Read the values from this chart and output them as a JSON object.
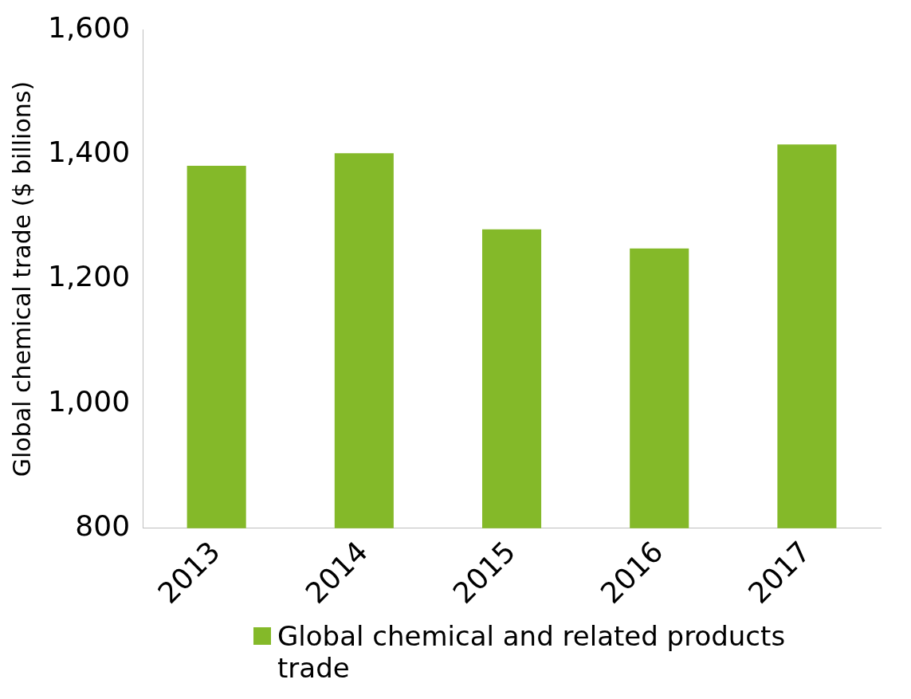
{
  "chart_data": {
    "type": "bar",
    "ylabel": "Global chemical trade ($ billions)",
    "categories": [
      "2013",
      "2014",
      "2015",
      "2016",
      "2017"
    ],
    "series": [
      {
        "name": "Global chemical and related products trade",
        "color": "#84b929",
        "values": [
          1382,
          1402,
          1280,
          1249,
          1416
        ]
      }
    ],
    "ylim": [
      800,
      1600
    ],
    "yticks": [
      {
        "value": 800,
        "label": "800"
      },
      {
        "value": 1000,
        "label": "1,000"
      },
      {
        "value": 1200,
        "label": "1,200"
      },
      {
        "value": 1400,
        "label": "1,400"
      },
      {
        "value": 1600,
        "label": "1,600"
      }
    ],
    "grid": false,
    "legend": "bottom"
  }
}
